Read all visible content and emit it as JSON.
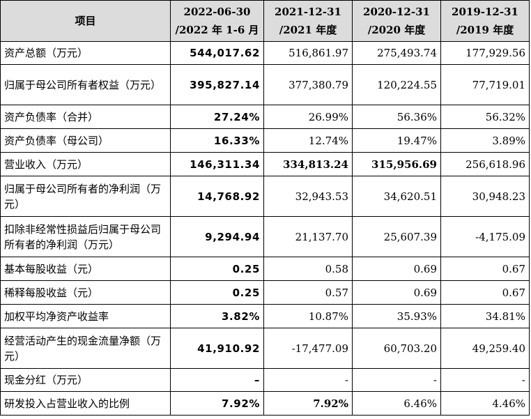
{
  "header": {
    "item": "项目",
    "cols": [
      [
        "2022-06-30",
        "/2022 年 1-6 月"
      ],
      [
        "2021-12-31",
        "/2021 年度"
      ],
      [
        "2020-12-31",
        "/2020 年度"
      ],
      [
        "2019-12-31",
        "/2019 年度"
      ]
    ]
  },
  "rows": [
    {
      "label": "资产总额（万元）",
      "values": [
        "544,017.62",
        "516,861.97",
        "275,493.74",
        "177,929.56"
      ],
      "bold": [
        true,
        false,
        false,
        false
      ],
      "h": 33
    },
    {
      "label": "归属于母公司所有者权益（万元）",
      "values": [
        "395,827.14",
        "377,380.79",
        "120,224.55",
        "77,719.01"
      ],
      "bold": [
        true,
        false,
        false,
        false
      ],
      "h": 58
    },
    {
      "label": "资产负债率（合并）",
      "values": [
        "27.24%",
        "26.99%",
        "56.36%",
        "56.32%"
      ],
      "bold": [
        true,
        false,
        false,
        false
      ],
      "h": 34
    },
    {
      "label": "资产负债率（母公司）",
      "values": [
        "16.33%",
        "12.74%",
        "19.47%",
        "3.89%"
      ],
      "bold": [
        true,
        false,
        false,
        false
      ],
      "h": 34
    },
    {
      "label": "营业收入（万元）",
      "values": [
        "146,311.34",
        "334,813.24",
        "315,956.69",
        "256,618.96"
      ],
      "bold": [
        true,
        true,
        true,
        false
      ],
      "h": 34
    },
    {
      "label": "归属于母公司所有者的净利润（万元）",
      "values": [
        "14,768.92",
        "32,943.53",
        "34,620.51",
        "30,948.23"
      ],
      "bold": [
        true,
        false,
        false,
        false
      ],
      "h": 58
    },
    {
      "label": "扣除非经常性损益后归属于母公司所有者的净利润（万元）",
      "values": [
        "9,294.94",
        "21,137.70",
        "25,607.39",
        "-4,175.09"
      ],
      "bold": [
        true,
        false,
        false,
        false
      ],
      "h": 58
    },
    {
      "label": "基本每股收益（元）",
      "values": [
        "0.25",
        "0.58",
        "0.69",
        "0.67"
      ],
      "bold": [
        true,
        false,
        false,
        false
      ],
      "h": 34
    },
    {
      "label": "稀释每股收益（元）",
      "values": [
        "0.25",
        "0.57",
        "0.69",
        "0.67"
      ],
      "bold": [
        true,
        false,
        false,
        false
      ],
      "h": 34
    },
    {
      "label": "加权平均净资产收益率",
      "values": [
        "3.82%",
        "10.87%",
        "35.93%",
        "34.81%"
      ],
      "bold": [
        true,
        false,
        false,
        false
      ],
      "h": 34
    },
    {
      "label": "经营活动产生的现金流量净额（万元）",
      "values": [
        "41,910.92",
        "-17,477.09",
        "60,703.20",
        "49,259.40"
      ],
      "bold": [
        true,
        false,
        false,
        false
      ],
      "h": 58
    },
    {
      "label": "现金分红（万元）",
      "values": [
        "–",
        "-",
        "-",
        "-"
      ],
      "bold": [
        true,
        false,
        false,
        false
      ],
      "h": 33
    },
    {
      "label": "研发投入占营业收入的比例",
      "values": [
        "7.92%",
        "7.92%",
        "6.46%",
        "4.46%"
      ],
      "bold": [
        true,
        true,
        false,
        false
      ],
      "h": 34
    }
  ]
}
